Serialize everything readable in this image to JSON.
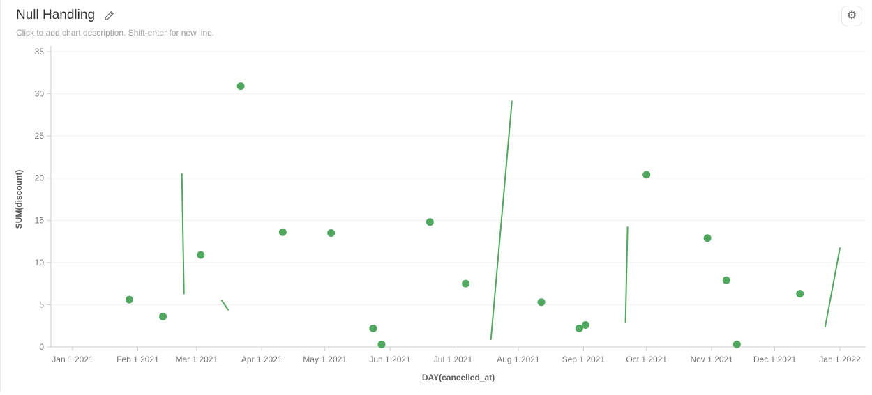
{
  "header": {
    "title": "Null Handling",
    "description_placeholder": "Click to add chart description. Shift-enter for new line.",
    "settings_icon": "gear-icon",
    "edit_icon": "pencil-icon"
  },
  "chart_data": {
    "type": "line",
    "title": "Null Handling",
    "xlabel": "DAY(cancelled_at)",
    "ylabel": "SUM(discount)",
    "legend": "none",
    "grid": "horizontal-only",
    "series_color": "#50a75f",
    "grid_color": "#f0f0f0",
    "axis_color": "#cccccc",
    "tick_label_color": "#757575",
    "axis_name_color": "#5c5c5c",
    "y_axis": {
      "min": 0,
      "max": 35,
      "ticks": [
        0,
        5,
        10,
        15,
        20,
        25,
        30,
        35
      ]
    },
    "x_axis": {
      "tick_labels": [
        "Jan 1 2021",
        "Feb 1 2021",
        "Mar 1 2021",
        "Apr 1 2021",
        "May 1 2021",
        "Jun 1 2021",
        "Jul 1 2021",
        "Aug 1 2021",
        "Sep 1 2021",
        "Oct 1 2021",
        "Nov 1 2021",
        "Dec 1 2021",
        "Jan 1 2022"
      ],
      "tick_days": [
        0,
        31,
        59,
        90,
        120,
        151,
        181,
        212,
        243,
        273,
        304,
        334,
        365
      ]
    },
    "points": [
      {
        "date": "Jan 28 2021",
        "day": 27,
        "value": 5.6
      },
      {
        "date": "Feb 13 2021",
        "day": 43,
        "value": 3.6
      },
      {
        "date": "Mar 3 2021",
        "day": 61,
        "value": 10.9
      },
      {
        "date": "Mar 22 2021",
        "day": 80,
        "value": 30.9
      },
      {
        "date": "Apr 11 2021",
        "day": 100,
        "value": 13.6
      },
      {
        "date": "May 4 2021",
        "day": 123,
        "value": 13.5
      },
      {
        "date": "May 24 2021",
        "day": 143,
        "value": 2.2
      },
      {
        "date": "May 28 2021",
        "day": 147,
        "value": 0.3
      },
      {
        "date": "Jun 20 2021",
        "day": 170,
        "value": 14.8
      },
      {
        "date": "Jul 7 2021",
        "day": 187,
        "value": 7.5
      },
      {
        "date": "Aug 12 2021",
        "day": 223,
        "value": 5.3
      },
      {
        "date": "Aug 30 2021",
        "day": 241,
        "value": 2.2
      },
      {
        "date": "Sep 2 2021",
        "day": 244,
        "value": 2.6
      },
      {
        "date": "Oct 1 2021",
        "day": 273,
        "value": 20.4
      },
      {
        "date": "Oct 30 2021",
        "day": 302,
        "value": 12.9
      },
      {
        "date": "Nov 8 2021",
        "day": 311,
        "value": 7.9
      },
      {
        "date": "Nov 13 2021",
        "day": 316,
        "value": 0.3
      },
      {
        "date": "Dec 13 2021",
        "day": 346,
        "value": 6.3
      }
    ],
    "segments": [
      {
        "from": {
          "date": "Feb 22 2021",
          "day": 52,
          "value": 20.5
        },
        "to": {
          "date": "Feb 23 2021",
          "day": 53,
          "value": 6.3
        }
      },
      {
        "from": {
          "date": "Mar 13 2021",
          "day": 71,
          "value": 5.5
        },
        "to": {
          "date": "Mar 16 2021",
          "day": 74,
          "value": 4.4
        }
      },
      {
        "from": {
          "date": "Jul 19 2021",
          "day": 199,
          "value": 0.9
        },
        "to": {
          "date": "Jul 29 2021",
          "day": 209,
          "value": 29.1
        }
      },
      {
        "from": {
          "date": "Sep 21 2021",
          "day": 263,
          "value": 2.9
        },
        "to": {
          "date": "Sep 22 2021",
          "day": 264,
          "value": 14.2
        }
      },
      {
        "from": {
          "date": "Dec 25 2021",
          "day": 358,
          "value": 2.4
        },
        "to": {
          "date": "Jan 1 2022",
          "day": 365,
          "value": 11.7
        }
      }
    ]
  }
}
